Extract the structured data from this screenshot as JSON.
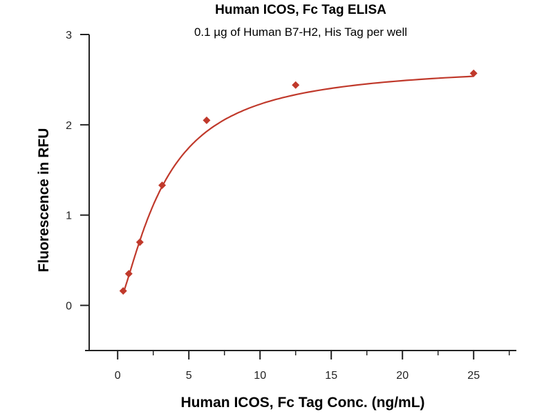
{
  "chart_data": {
    "type": "scatter",
    "title": "Human ICOS, Fc Tag ELISA",
    "subtitle": "0.1 µg of Human B7-H2, His Tag per well",
    "xlabel": "Human ICOS, Fc Tag Conc. (ng/mL)",
    "ylabel": "Fluorescence in RFU",
    "xlim": [
      -2,
      28
    ],
    "ylim": [
      -0.5,
      3
    ],
    "xticks": [
      0,
      5,
      10,
      15,
      20,
      25
    ],
    "xminor": [
      2.5,
      7.5,
      12.5,
      17.5,
      22.5,
      27.5
    ],
    "yticks": [
      0,
      1,
      2,
      3
    ],
    "grid": false,
    "series": [
      {
        "name": "Human ICOS, Fc Tag",
        "color": "#c0392b",
        "x": [
          0.39,
          0.78,
          1.56,
          3.125,
          6.25,
          12.5,
          25
        ],
        "y": [
          0.16,
          0.35,
          0.7,
          1.33,
          2.05,
          2.44,
          2.57
        ],
        "fit": {
          "model": "4PL",
          "bottom": 0,
          "top": 2.68,
          "ec50": 3.2,
          "hill": 1.4
        }
      }
    ]
  }
}
